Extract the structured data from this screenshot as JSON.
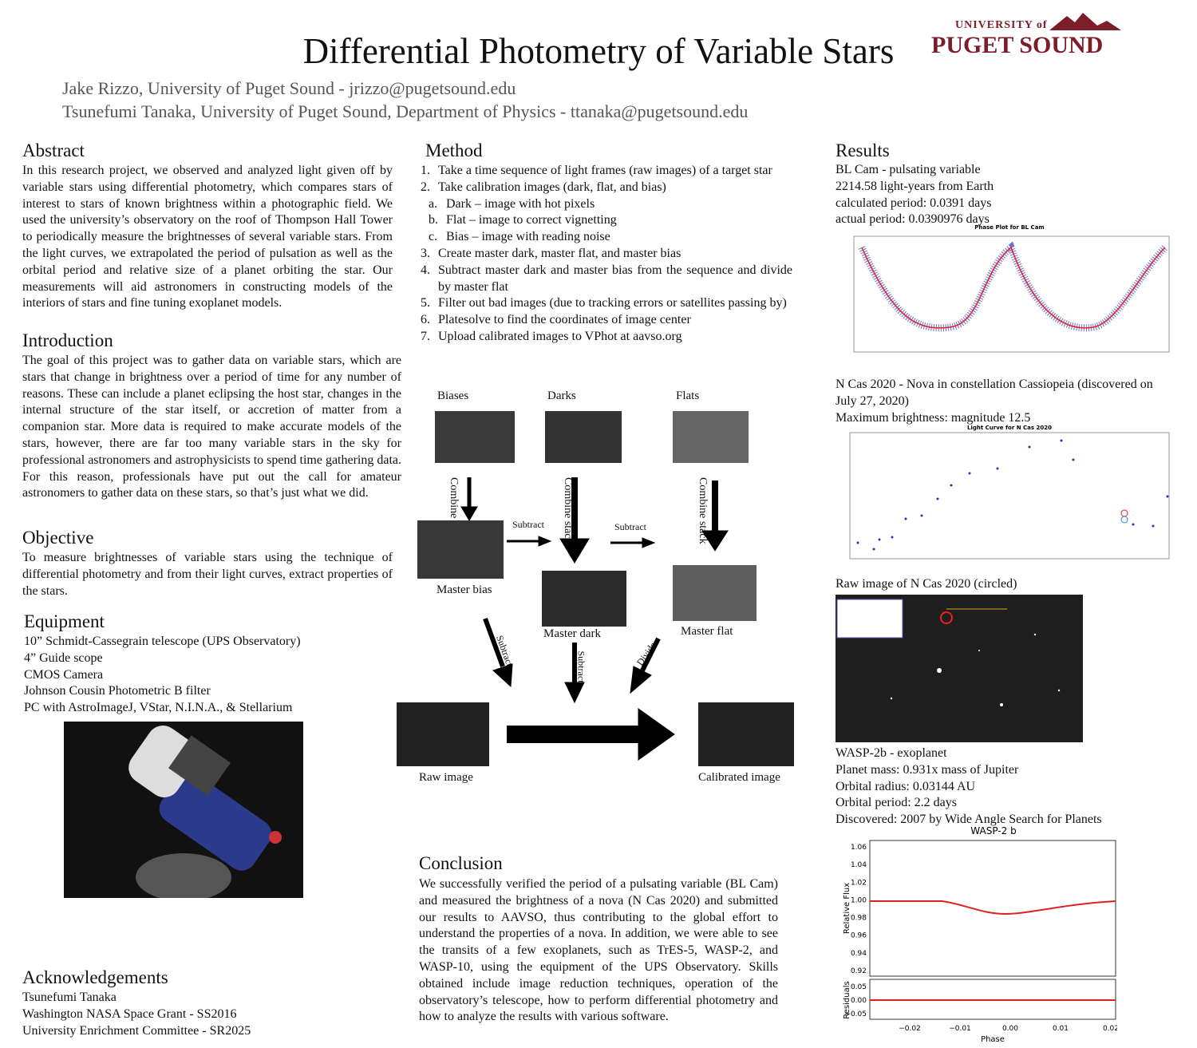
{
  "header": {
    "title": "Differential Photometry of Variable Stars",
    "authors": [
      "Jake Rizzo, University of Puget Sound - jrizzo@pugetsound.edu",
      "Tsunefumi Tanaka, University of Puget Sound, Department of Physics - ttanaka@pugetsound.edu"
    ],
    "logo": {
      "top": "UNIVERSITY of",
      "bottom": "PUGET SOUND"
    }
  },
  "abstract": {
    "heading": "Abstract",
    "body": "In this research project, we observed and analyzed light given off by variable stars using differential photometry, which compares stars of interest to stars of known brightness within a photographic field. We used the university’s observatory on the roof of Thompson Hall Tower to periodically measure the brightnesses of several variable stars. From the light curves, we extrapolated the period of pulsation as well as the orbital period and relative size of a planet orbiting the star. Our measurements will aid astronomers in constructing models of the interiors of stars and fine tuning exoplanet models."
  },
  "introduction": {
    "heading": "Introduction",
    "body": "The goal of this project was to gather data on variable stars, which are stars that change in brightness over a period of time for any number of reasons. These can include a planet eclipsing the host star, changes in the internal structure of the star itself, or accretion of matter from a companion star. More data is required to make accurate models of the stars, however, there are far too many variable stars in the sky for professional astronomers and astrophysicists to spend time gathering data. For this reason, professionals have put out the call for amateur astronomers to gather data on these stars, so that’s just what we did."
  },
  "objective": {
    "heading": "Objective",
    "body": "To measure brightnesses of variable stars using the technique of differential photometry and from their light curves, extract properties of the stars."
  },
  "equipment": {
    "heading": "Equipment",
    "items": [
      "10” Schmidt-Cassegrain telescope (UPS Observatory)",
      "4” Guide scope",
      "CMOS Camera",
      "Johnson Cousin Photometric B filter",
      "PC with AstroImageJ, VStar,  N.I.N.A., & Stellarium"
    ]
  },
  "acknowledgements": {
    "heading": "Acknowledgements",
    "items": [
      "Tsunefumi Tanaka",
      "Washington NASA Space Grant - SS2016",
      "University Enrichment Committee - SR2025"
    ]
  },
  "method": {
    "heading": "Method",
    "steps": [
      {
        "marker": "1.",
        "text": "Take a time sequence of light frames (raw images) of a target star"
      },
      {
        "marker": "2.",
        "text": "Take calibration images (dark, flat, and bias)",
        "sub": [
          {
            "marker": "a.",
            "text": "Dark – image with hot pixels"
          },
          {
            "marker": "b.",
            "text": "Flat – image to correct vignetting"
          },
          {
            "marker": "c.",
            "text": "Bias – image with reading noise"
          }
        ]
      },
      {
        "marker": "3.",
        "text": "Create master dark, master flat, and master bias"
      },
      {
        "marker": "4.",
        "text": "Subtract master dark and master bias from the sequence and divide by master flat"
      },
      {
        "marker": "5.",
        "text": "Filter out bad images (due to tracking errors or satellites passing by)"
      },
      {
        "marker": "6.",
        "text": "Platesolve to find the coordinates of image center"
      },
      {
        "marker": "7.",
        "text": "Upload calibrated images to VPhot at aavso.org"
      }
    ],
    "diagram": {
      "biases": "Biases",
      "darks": "Darks",
      "flats": "Flats",
      "combine": "Combine stack",
      "subtract": "Subtract",
      "divide": "Divide",
      "master_bias": "Master bias",
      "master_dark": "Master dark",
      "master_flat": "Master flat",
      "raw": "Raw image",
      "calibrated": "Calibrated image"
    }
  },
  "conclusion": {
    "heading": "Conclusion",
    "body": "We successfully verified the period of a pulsating variable (BL Cam) and measured the brightness of a nova (N Cas 2020) and submitted our results to AAVSO, thus contributing to the global effort to understand the properties of a nova. In addition, we were able to see the transits of a few exoplanets, such as TrES-5, WASP-2, and WASP-10, using the equipment of the UPS Observatory. Skills obtained include image reduction techniques, operation of the observatory’s telescope, how to perform differential photometry and how to analyze the results with various software."
  },
  "results": {
    "heading": "Results",
    "bl_cam": {
      "lines": [
        "BL Cam - pulsating variable",
        "2214.58 light-years from Earth",
        "calculated period: 0.0391 days",
        "actual period: 0.0390976 days"
      ],
      "plot_title": "Phase Plot for BL Cam"
    },
    "n_cas": {
      "lines": [
        "N Cas 2020 - Nova in constellation Cassiopeia (discovered on July 27, 2020)",
        "Maximum brightness: magnitude 12.5"
      ],
      "plot_title": "Light Curve for N Cas 2020",
      "raw_caption": "Raw image of N Cas 2020 (circled)"
    },
    "wasp": {
      "lines": [
        "WASP-2b - exoplanet",
        "Planet mass: 0.931x mass of Jupiter",
        "Orbital radius: 0.03144 AU",
        "Orbital period: 2.2 days",
        "Discovered: 2007 by Wide Angle Search for Planets"
      ],
      "plot_title": "WASP-2 b",
      "ylabel": "Relative Flux",
      "res_label": "Residuals",
      "xlabel": "Phase",
      "yticks": [
        "1.06",
        "1.04",
        "1.02",
        "1.00",
        "0.98",
        "0.96",
        "0.94",
        "0.92"
      ],
      "res_ticks": [
        "0.05",
        "0.00",
        "−0.05"
      ],
      "xticks": [
        "−0.02",
        "−0.01",
        "0.00",
        "0.01",
        "0.02"
      ]
    }
  }
}
